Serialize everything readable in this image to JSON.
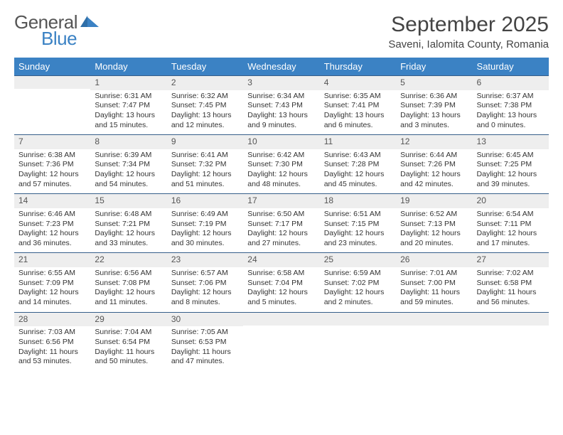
{
  "logo": {
    "word1": "General",
    "word2": "Blue"
  },
  "title": "September 2025",
  "location": "Saveni, Ialomita County, Romania",
  "colors": {
    "header_blue": "#3b82c4",
    "line": "#365f8a",
    "row_bg": "#eeeeee",
    "text": "#333333"
  },
  "dow": [
    "Sunday",
    "Monday",
    "Tuesday",
    "Wednesday",
    "Thursday",
    "Friday",
    "Saturday"
  ],
  "layout": {
    "first_weekday_index": 1,
    "days_in_month": 30
  },
  "days": {
    "1": {
      "sunrise": "Sunrise: 6:31 AM",
      "sunset": "Sunset: 7:47 PM",
      "daylight": "Daylight: 13 hours and 15 minutes."
    },
    "2": {
      "sunrise": "Sunrise: 6:32 AM",
      "sunset": "Sunset: 7:45 PM",
      "daylight": "Daylight: 13 hours and 12 minutes."
    },
    "3": {
      "sunrise": "Sunrise: 6:34 AM",
      "sunset": "Sunset: 7:43 PM",
      "daylight": "Daylight: 13 hours and 9 minutes."
    },
    "4": {
      "sunrise": "Sunrise: 6:35 AM",
      "sunset": "Sunset: 7:41 PM",
      "daylight": "Daylight: 13 hours and 6 minutes."
    },
    "5": {
      "sunrise": "Sunrise: 6:36 AM",
      "sunset": "Sunset: 7:39 PM",
      "daylight": "Daylight: 13 hours and 3 minutes."
    },
    "6": {
      "sunrise": "Sunrise: 6:37 AM",
      "sunset": "Sunset: 7:38 PM",
      "daylight": "Daylight: 13 hours and 0 minutes."
    },
    "7": {
      "sunrise": "Sunrise: 6:38 AM",
      "sunset": "Sunset: 7:36 PM",
      "daylight": "Daylight: 12 hours and 57 minutes."
    },
    "8": {
      "sunrise": "Sunrise: 6:39 AM",
      "sunset": "Sunset: 7:34 PM",
      "daylight": "Daylight: 12 hours and 54 minutes."
    },
    "9": {
      "sunrise": "Sunrise: 6:41 AM",
      "sunset": "Sunset: 7:32 PM",
      "daylight": "Daylight: 12 hours and 51 minutes."
    },
    "10": {
      "sunrise": "Sunrise: 6:42 AM",
      "sunset": "Sunset: 7:30 PM",
      "daylight": "Daylight: 12 hours and 48 minutes."
    },
    "11": {
      "sunrise": "Sunrise: 6:43 AM",
      "sunset": "Sunset: 7:28 PM",
      "daylight": "Daylight: 12 hours and 45 minutes."
    },
    "12": {
      "sunrise": "Sunrise: 6:44 AM",
      "sunset": "Sunset: 7:26 PM",
      "daylight": "Daylight: 12 hours and 42 minutes."
    },
    "13": {
      "sunrise": "Sunrise: 6:45 AM",
      "sunset": "Sunset: 7:25 PM",
      "daylight": "Daylight: 12 hours and 39 minutes."
    },
    "14": {
      "sunrise": "Sunrise: 6:46 AM",
      "sunset": "Sunset: 7:23 PM",
      "daylight": "Daylight: 12 hours and 36 minutes."
    },
    "15": {
      "sunrise": "Sunrise: 6:48 AM",
      "sunset": "Sunset: 7:21 PM",
      "daylight": "Daylight: 12 hours and 33 minutes."
    },
    "16": {
      "sunrise": "Sunrise: 6:49 AM",
      "sunset": "Sunset: 7:19 PM",
      "daylight": "Daylight: 12 hours and 30 minutes."
    },
    "17": {
      "sunrise": "Sunrise: 6:50 AM",
      "sunset": "Sunset: 7:17 PM",
      "daylight": "Daylight: 12 hours and 27 minutes."
    },
    "18": {
      "sunrise": "Sunrise: 6:51 AM",
      "sunset": "Sunset: 7:15 PM",
      "daylight": "Daylight: 12 hours and 23 minutes."
    },
    "19": {
      "sunrise": "Sunrise: 6:52 AM",
      "sunset": "Sunset: 7:13 PM",
      "daylight": "Daylight: 12 hours and 20 minutes."
    },
    "20": {
      "sunrise": "Sunrise: 6:54 AM",
      "sunset": "Sunset: 7:11 PM",
      "daylight": "Daylight: 12 hours and 17 minutes."
    },
    "21": {
      "sunrise": "Sunrise: 6:55 AM",
      "sunset": "Sunset: 7:09 PM",
      "daylight": "Daylight: 12 hours and 14 minutes."
    },
    "22": {
      "sunrise": "Sunrise: 6:56 AM",
      "sunset": "Sunset: 7:08 PM",
      "daylight": "Daylight: 12 hours and 11 minutes."
    },
    "23": {
      "sunrise": "Sunrise: 6:57 AM",
      "sunset": "Sunset: 7:06 PM",
      "daylight": "Daylight: 12 hours and 8 minutes."
    },
    "24": {
      "sunrise": "Sunrise: 6:58 AM",
      "sunset": "Sunset: 7:04 PM",
      "daylight": "Daylight: 12 hours and 5 minutes."
    },
    "25": {
      "sunrise": "Sunrise: 6:59 AM",
      "sunset": "Sunset: 7:02 PM",
      "daylight": "Daylight: 12 hours and 2 minutes."
    },
    "26": {
      "sunrise": "Sunrise: 7:01 AM",
      "sunset": "Sunset: 7:00 PM",
      "daylight": "Daylight: 11 hours and 59 minutes."
    },
    "27": {
      "sunrise": "Sunrise: 7:02 AM",
      "sunset": "Sunset: 6:58 PM",
      "daylight": "Daylight: 11 hours and 56 minutes."
    },
    "28": {
      "sunrise": "Sunrise: 7:03 AM",
      "sunset": "Sunset: 6:56 PM",
      "daylight": "Daylight: 11 hours and 53 minutes."
    },
    "29": {
      "sunrise": "Sunrise: 7:04 AM",
      "sunset": "Sunset: 6:54 PM",
      "daylight": "Daylight: 11 hours and 50 minutes."
    },
    "30": {
      "sunrise": "Sunrise: 7:05 AM",
      "sunset": "Sunset: 6:53 PM",
      "daylight": "Daylight: 11 hours and 47 minutes."
    }
  }
}
